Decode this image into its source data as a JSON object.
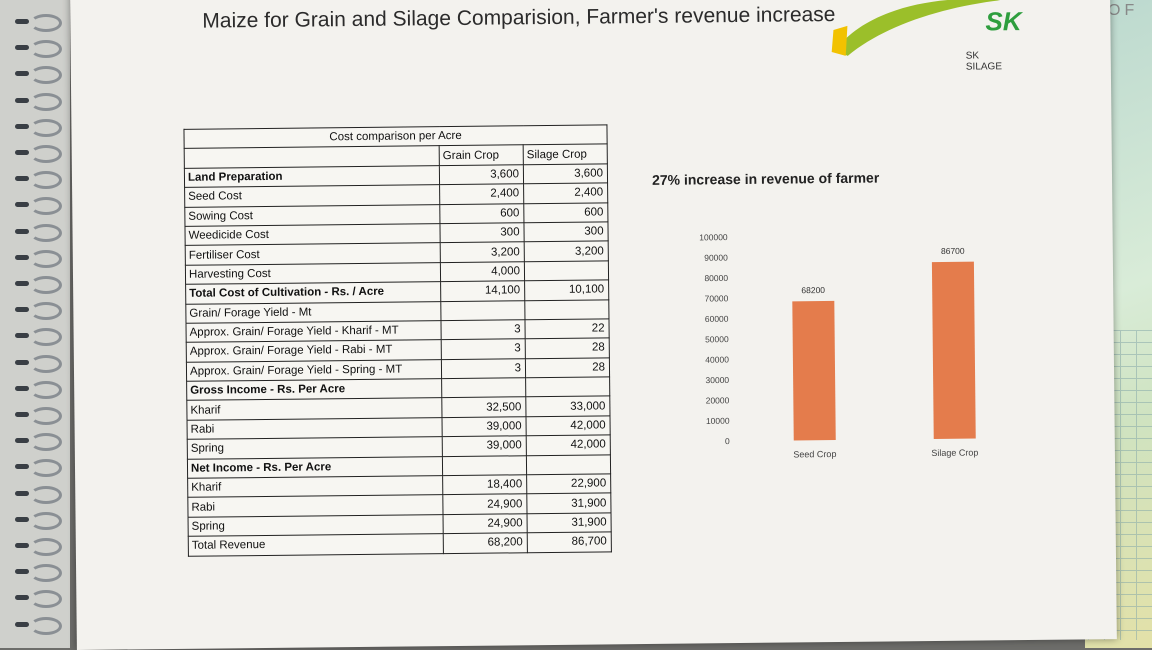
{
  "header": {
    "title": "Maize for Grain and Silage Comparision, Farmer's revenue increase",
    "logo_mark": "SK",
    "logo_text": "SK SILAGE",
    "corner_text": "OF"
  },
  "table": {
    "caption": "Cost comparison per Acre",
    "col_grain": "Grain Crop",
    "col_silage": "Silage Crop",
    "rows": [
      {
        "label": "Land Preparation",
        "grain": "3,600",
        "silage": "3,600",
        "bold": true
      },
      {
        "label": "Seed Cost",
        "grain": "2,400",
        "silage": "2,400",
        "bold": false
      },
      {
        "label": "Sowing Cost",
        "grain": "600",
        "silage": "600",
        "bold": false
      },
      {
        "label": "Weedicide Cost",
        "grain": "300",
        "silage": "300",
        "bold": false
      },
      {
        "label": "Fertiliser Cost",
        "grain": "3,200",
        "silage": "3,200",
        "bold": false
      },
      {
        "label": "Harvesting Cost",
        "grain": "4,000",
        "silage": "",
        "bold": false
      },
      {
        "label": "Total Cost of Cultivation - Rs. / Acre",
        "grain": "14,100",
        "silage": "10,100",
        "bold": true
      },
      {
        "label": "Grain/ Forage Yield - Mt",
        "grain": "",
        "silage": "",
        "bold": false
      },
      {
        "label": "Approx. Grain/ Forage Yield - Kharif - MT",
        "grain": "3",
        "silage": "22",
        "bold": false
      },
      {
        "label": "Approx. Grain/ Forage Yield - Rabi - MT",
        "grain": "3",
        "silage": "28",
        "bold": false
      },
      {
        "label": "Approx. Grain/ Forage Yield - Spring - MT",
        "grain": "3",
        "silage": "28",
        "bold": false
      },
      {
        "label": "Gross Income - Rs. Per Acre",
        "grain": "",
        "silage": "",
        "bold": true
      },
      {
        "label": "Kharif",
        "grain": "32,500",
        "silage": "33,000",
        "bold": false
      },
      {
        "label": "Rabi",
        "grain": "39,000",
        "silage": "42,000",
        "bold": false
      },
      {
        "label": "Spring",
        "grain": "39,000",
        "silage": "42,000",
        "bold": false
      },
      {
        "label": "Net Income - Rs. Per Acre",
        "grain": "",
        "silage": "",
        "bold": true
      },
      {
        "label": "Kharif",
        "grain": "18,400",
        "silage": "22,900",
        "bold": false
      },
      {
        "label": "Rabi",
        "grain": "24,900",
        "silage": "31,900",
        "bold": false
      },
      {
        "label": "Spring",
        "grain": "24,900",
        "silage": "31,900",
        "bold": false
      },
      {
        "label": "Total Revenue",
        "grain": "68,200",
        "silage": "86,700",
        "bold": false
      }
    ]
  },
  "chart_data": {
    "type": "bar",
    "title": "27% increase in revenue of farmer",
    "categories": [
      "Seed Crop",
      "Silage Crop"
    ],
    "values": [
      68200,
      86700
    ],
    "ylim": [
      0,
      100000
    ],
    "yticks": [
      0,
      10000,
      20000,
      30000,
      40000,
      50000,
      60000,
      70000,
      80000,
      90000,
      100000
    ],
    "bar_color": "#e47c4c",
    "grid": false,
    "data_labels": true
  }
}
